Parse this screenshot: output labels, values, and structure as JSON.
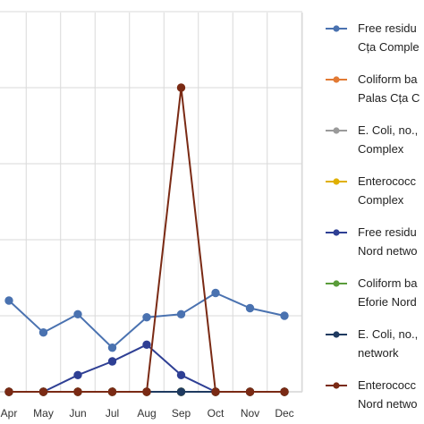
{
  "chart_data": {
    "type": "line",
    "categories": [
      "Apr",
      "May",
      "Jun",
      "Jul",
      "Aug",
      "Sep",
      "Oct",
      "Nov",
      "Dec"
    ],
    "ylim": [
      0,
      5
    ],
    "grid": true,
    "legend_position": "right",
    "series": [
      {
        "label_lines": [
          "Free residu",
          "Cța Comple"
        ],
        "color": "#4a72b0",
        "values": [
          1.2,
          0.78,
          1.02,
          0.58,
          0.98,
          1.02,
          1.3,
          1.1,
          1.0
        ]
      },
      {
        "label_lines": [
          "Coliform ba",
          "Palas Cța C"
        ],
        "color": "#e27a34",
        "values": [
          0,
          0,
          0,
          0,
          0,
          0,
          0,
          0,
          0
        ]
      },
      {
        "label_lines": [
          "E. Coli, no.,",
          "Complex"
        ],
        "color": "#9a9a9a",
        "values": [
          0,
          0,
          0,
          0,
          0,
          0,
          0,
          0,
          0
        ]
      },
      {
        "label_lines": [
          "Enterococc",
          "Complex"
        ],
        "color": "#e0b000",
        "values": [
          0,
          0,
          0,
          0,
          0,
          0,
          0,
          0,
          0
        ]
      },
      {
        "label_lines": [
          "Free residu",
          "Nord netwo"
        ],
        "color": "#2e3f94",
        "values": [
          0,
          0,
          0.22,
          0.4,
          0.62,
          0.22,
          0,
          0,
          0
        ]
      },
      {
        "label_lines": [
          "Coliform ba",
          "Eforie Nord"
        ],
        "color": "#5a9c3a",
        "values": [
          0,
          0,
          0,
          0,
          0,
          0,
          0,
          0,
          0
        ]
      },
      {
        "label_lines": [
          "E. Coli, no.,",
          "network"
        ],
        "color": "#1f3a60",
        "values": [
          0,
          0,
          0,
          0,
          0,
          0,
          0,
          0,
          0
        ]
      },
      {
        "label_lines": [
          "Enterococc",
          "Nord netwo"
        ],
        "color": "#7a2a14",
        "values": [
          0,
          0,
          0,
          0,
          0,
          4.0,
          0,
          0,
          0
        ]
      }
    ]
  }
}
